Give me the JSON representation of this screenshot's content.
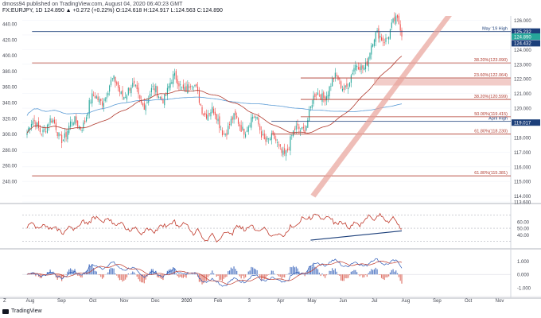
{
  "header": {
    "line1": "dmoss94 published on TradingView.com, August 04, 2020 06:40:23 GMT",
    "symbol": "FX:EURJPY, 1D",
    "ohlc": "124.890 ▲ +0.272 (+0.22%) O:124.618 H:124.917 L:124.563 C:124.890"
  },
  "brand": {
    "label": "TradingView"
  },
  "colors": {
    "bull": "#26a69a",
    "bear": "#ef5350",
    "rsi": "#c0392b",
    "ma_red": "#b03a2e",
    "ma_blue": "#5b9bd5",
    "navy": "#1c3f7a",
    "channel": "#e8a39a",
    "zone": "#e8a39a",
    "macd_up": "#5b7fc7",
    "macd_dn": "#e07a6f",
    "macd_line": "#2e5cb8",
    "signal_line": "#c0392b"
  },
  "axes": {
    "left_ticks": [
      "440.00",
      "420.00",
      "400.00",
      "380.00",
      "360.00",
      "340.00",
      "320.00",
      "300.00",
      "280.00",
      "260.00",
      "240.00"
    ],
    "right_ticks": [
      "126.000",
      "125.000",
      "124.000",
      "123.000",
      "122.000",
      "121.000",
      "120.000",
      "119.000",
      "118.000",
      "117.000",
      "116.000",
      "115.000",
      "114.000",
      "113.600"
    ],
    "rsi_ticks": [
      "60.00",
      "50.00",
      "40.00"
    ],
    "macd_ticks": [
      "1.000",
      "0.000",
      "-1.000"
    ],
    "x_labels": [
      "Aug",
      "Sep",
      "Oct",
      "Nov",
      "Dec",
      "2020",
      "Feb",
      "3",
      "Apr",
      "May",
      "Jun",
      "Jul",
      "Aug",
      "Sep",
      "Oct",
      "Nov"
    ]
  },
  "price_badges": [
    {
      "text": "125.232",
      "value": 125.232,
      "color": "#1c3f7a"
    },
    {
      "text": "124.890",
      "value": 124.89,
      "color": "#26a69a"
    },
    {
      "text": "124.432",
      "value": 124.432,
      "color": "#1c3f7a"
    },
    {
      "text": "119.017",
      "value": 119.017,
      "color": "#1c3f7a"
    }
  ],
  "annotations": [
    {
      "text": "May '19 High",
      "value": 125.232,
      "color": "#1c3f7a",
      "start": 0.02
    },
    {
      "text": "38.20%(123.090)",
      "value": 123.09,
      "color": "#b03a2e",
      "start": 0.02
    },
    {
      "text": "23.60%(122.064)",
      "value": 122.064,
      "color": "#b03a2e",
      "start": 0.57
    },
    {
      "text": "38.20%(120.599)",
      "value": 120.599,
      "color": "#b03a2e",
      "start": 0.57
    },
    {
      "text": "50.00%(119.415)",
      "value": 119.415,
      "color": "#b03a2e",
      "start": 0.57
    },
    {
      "text": "April High",
      "value": 119.1,
      "color": "#1c3f7a",
      "start": 0.51
    },
    {
      "text": "61.80%(118.230)",
      "value": 118.23,
      "color": "#b03a2e",
      "start": 0.51
    },
    {
      "text": "61.80%(115.381)",
      "value": 115.381,
      "color": "#b03a2e",
      "start": 0.02
    }
  ],
  "chart_data": {
    "type": "candlestick",
    "symbol": "FX:EURJPY",
    "timeframe": "1D",
    "y_range": [
      113.6,
      126.3
    ],
    "rsi_range": [
      20,
      85
    ],
    "macd_range": [
      -1.6,
      1.8
    ],
    "monthly_closes": [
      {
        "month": "Aug",
        "close": 118.3
      },
      {
        "month": "Sep",
        "close": 118.1
      },
      {
        "month": "Oct",
        "close": 120.5
      },
      {
        "month": "Nov",
        "close": 120.8
      },
      {
        "month": "Dec",
        "close": 121.5
      },
      {
        "month": "2020",
        "close": 121.1
      },
      {
        "month": "Feb",
        "close": 119.9
      },
      {
        "month": "Mar",
        "close": 118.5
      },
      {
        "month": "Apr",
        "close": 117.5
      },
      {
        "month": "May",
        "close": 119.5
      },
      {
        "month": "Jun",
        "close": 121.5
      },
      {
        "month": "Jul",
        "close": 124.5
      },
      {
        "month": "Aug",
        "close": 124.89
      }
    ],
    "last_price": 124.89
  }
}
